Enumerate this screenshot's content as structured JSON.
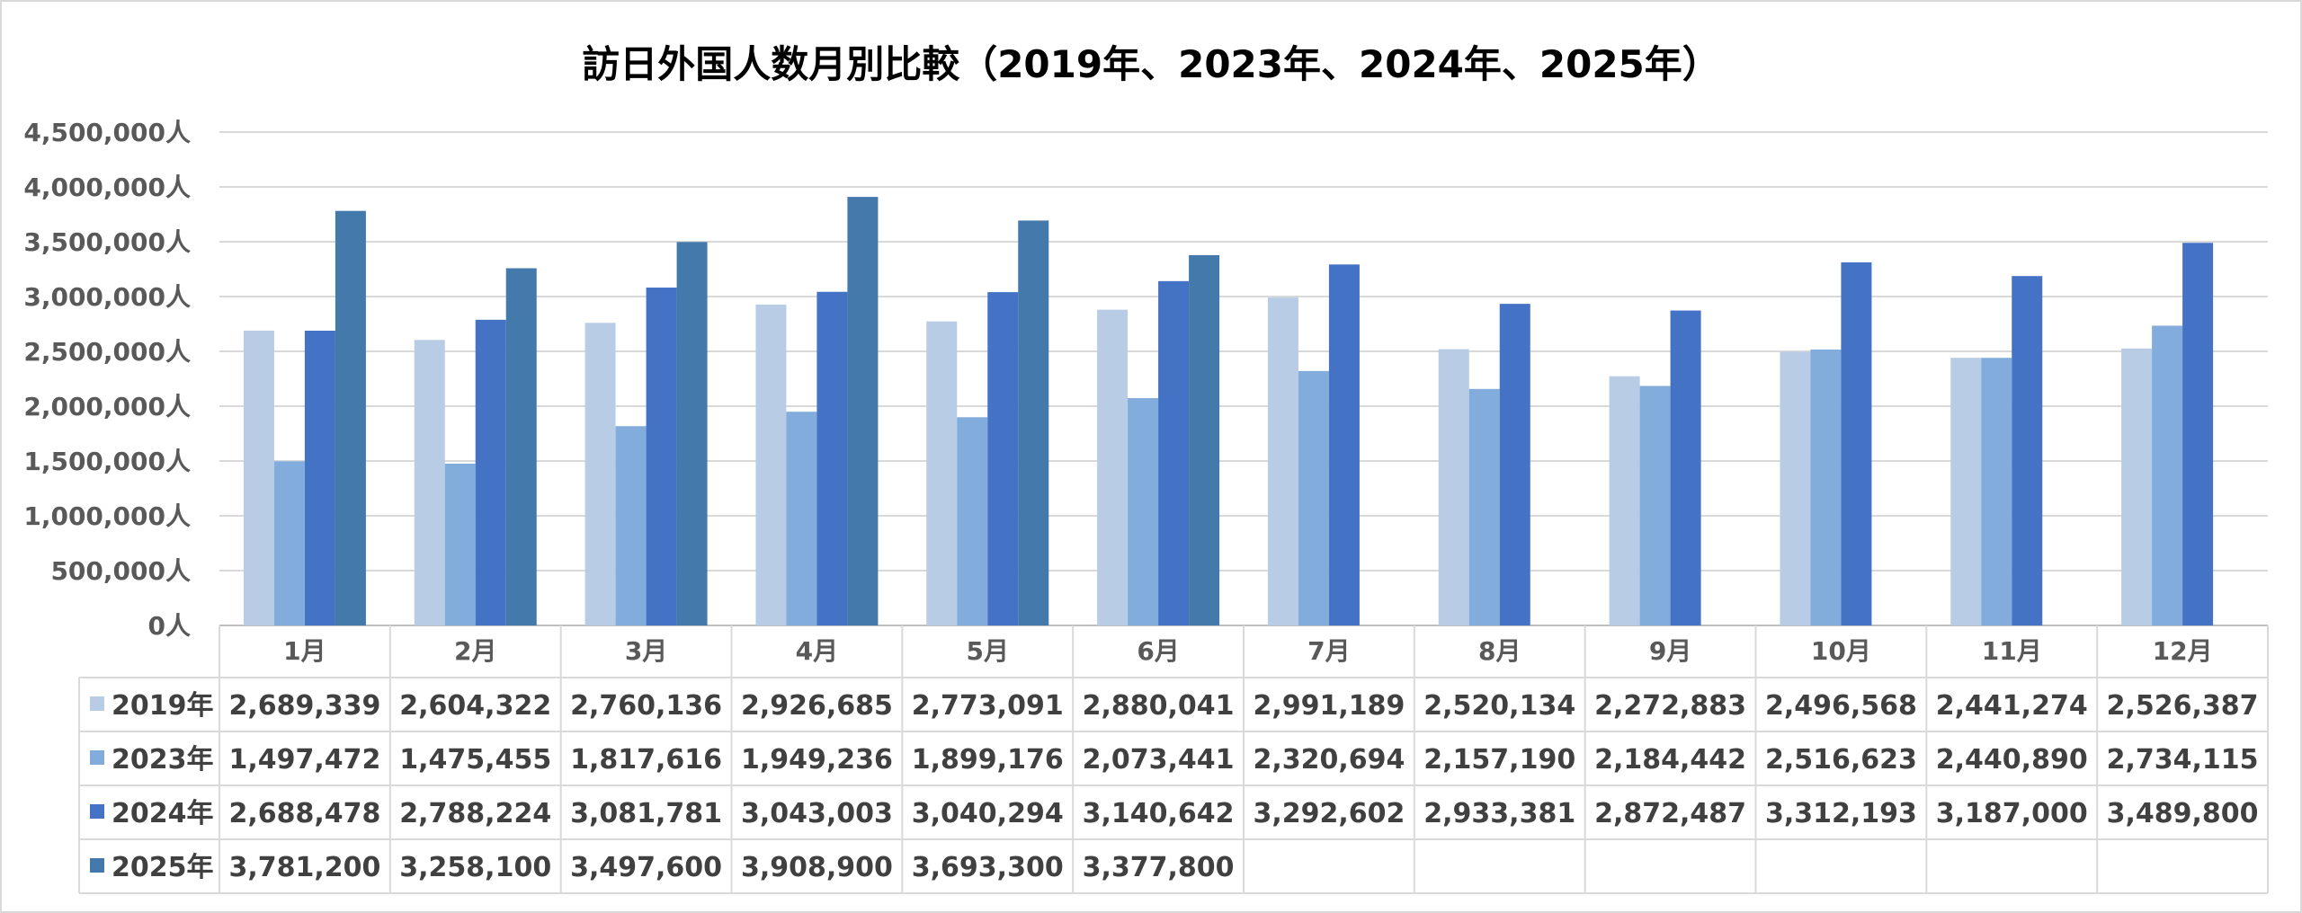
{
  "chart_data": {
    "type": "bar",
    "title": "訪日外国人数月別比較（2019年、2023年、2024年、2025年）",
    "categories": [
      "1月",
      "2月",
      "3月",
      "4月",
      "5月",
      "6月",
      "7月",
      "8月",
      "9月",
      "10月",
      "11月",
      "12月"
    ],
    "y_unit": "人",
    "ylim": [
      0,
      4500000
    ],
    "yticks": [
      0,
      500000,
      1000000,
      1500000,
      2000000,
      2500000,
      3000000,
      3500000,
      4000000,
      4500000
    ],
    "ytick_labels": [
      "0人",
      "500,000人",
      "1,000,000人",
      "1,500,000人",
      "2,000,000人",
      "2,500,000人",
      "3,000,000人",
      "3,500,000人",
      "4,000,000人",
      "4,500,000人"
    ],
    "grid": true,
    "legend": "data-table",
    "series": [
      {
        "name": "2019年",
        "color": "#B8CCE6",
        "values": [
          2689339,
          2604322,
          2760136,
          2926685,
          2773091,
          2880041,
          2991189,
          2520134,
          2272883,
          2496568,
          2441274,
          2526387
        ],
        "labels": [
          "2,689,339",
          "2,604,322",
          "2,760,136",
          "2,926,685",
          "2,773,091",
          "2,880,041",
          "2,991,189",
          "2,520,134",
          "2,272,883",
          "2,496,568",
          "2,441,274",
          "2,526,387"
        ]
      },
      {
        "name": "2023年",
        "color": "#82ACDC",
        "values": [
          1497472,
          1475455,
          1817616,
          1949236,
          1899176,
          2073441,
          2320694,
          2157190,
          2184442,
          2516623,
          2440890,
          2734115
        ],
        "labels": [
          "1,497,472",
          "1,475,455",
          "1,817,616",
          "1,949,236",
          "1,899,176",
          "2,073,441",
          "2,320,694",
          "2,157,190",
          "2,184,442",
          "2,516,623",
          "2,440,890",
          "2,734,115"
        ]
      },
      {
        "name": "2024年",
        "color": "#4472C4",
        "values": [
          2688478,
          2788224,
          3081781,
          3043003,
          3040294,
          3140642,
          3292602,
          2933381,
          2872487,
          3312193,
          3187000,
          3489800
        ],
        "labels": [
          "2,688,478",
          "2,788,224",
          "3,081,781",
          "3,043,003",
          "3,040,294",
          "3,140,642",
          "3,292,602",
          "2,933,381",
          "2,872,487",
          "3,312,193",
          "3,187,000",
          "3,489,800"
        ]
      },
      {
        "name": "2025年",
        "color": "#4479AC",
        "values": [
          3781200,
          3258100,
          3497600,
          3908900,
          3693300,
          3377800,
          null,
          null,
          null,
          null,
          null,
          null
        ],
        "labels": [
          "3,781,200",
          "3,258,100",
          "3,497,600",
          "3,908,900",
          "3,693,300",
          "3,377,800",
          "",
          "",
          "",
          "",
          "",
          ""
        ]
      }
    ]
  }
}
